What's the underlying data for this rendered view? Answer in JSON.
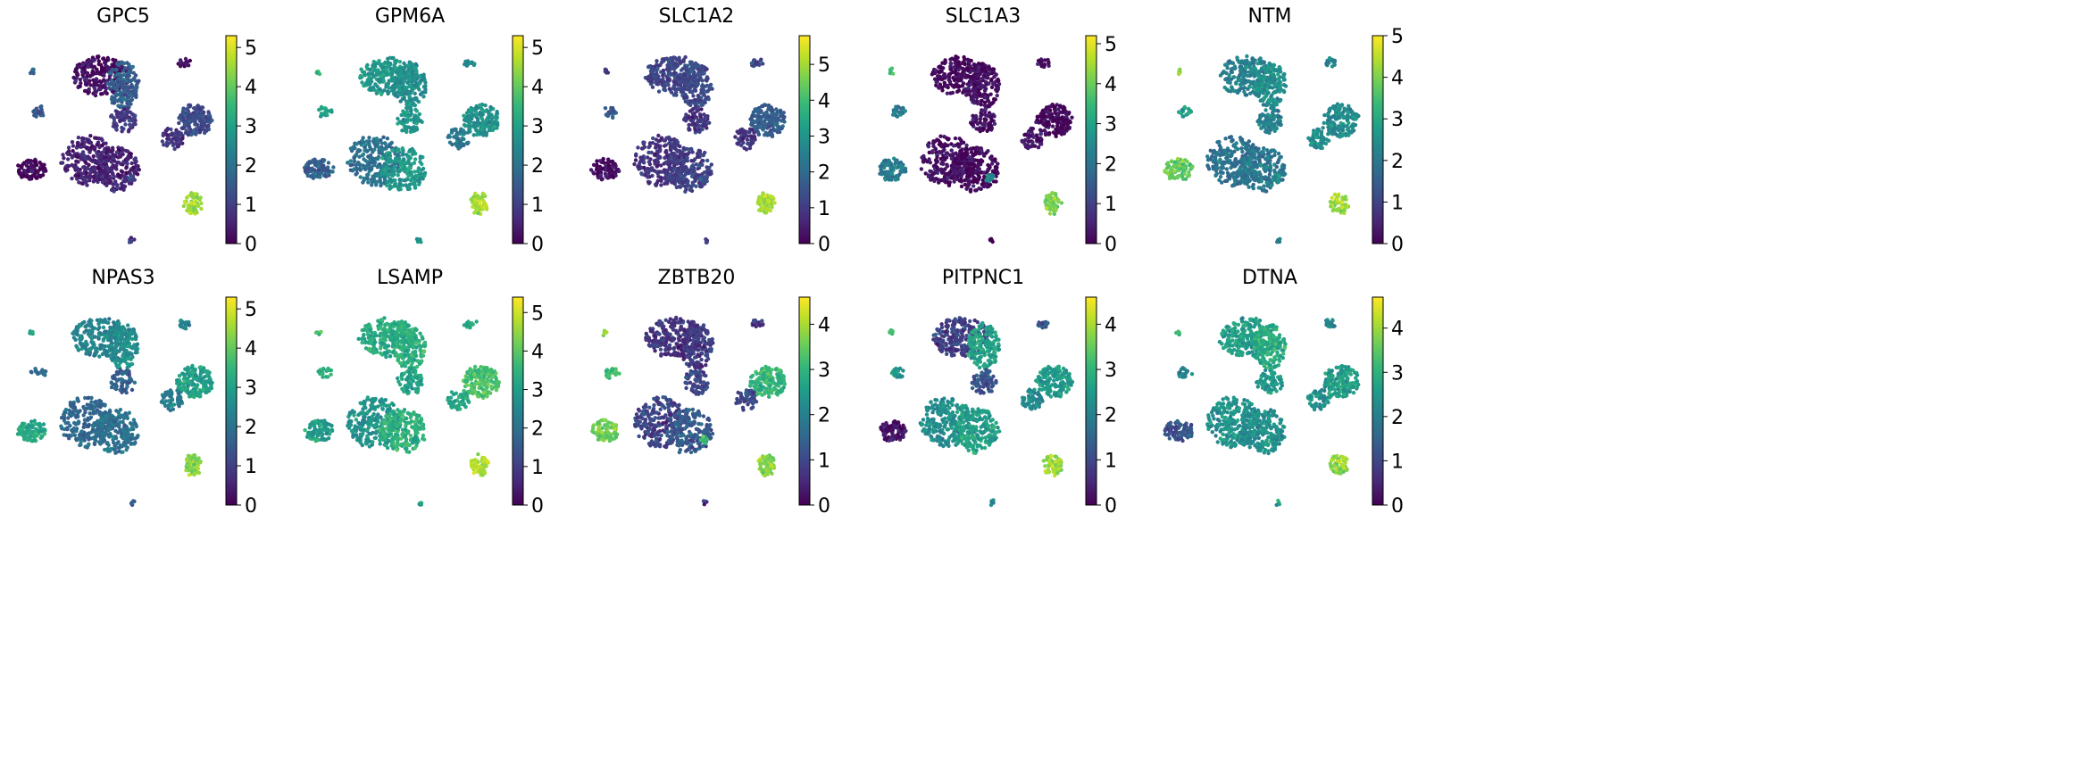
{
  "colormap": "viridis",
  "colormap_stops": [
    "#440154",
    "#482878",
    "#3e4a89",
    "#31688e",
    "#26828e",
    "#1f9e89",
    "#35b779",
    "#6ece58",
    "#b5de2b",
    "#fde725"
  ],
  "chart_data": [
    {
      "type": "scatter",
      "title": "GPC5",
      "colorbar_ticks": [
        "0",
        "1",
        "2",
        "3",
        "4",
        "5"
      ],
      "vmin": 0,
      "vmax": 5.3,
      "levels": {
        "c1": 0.2,
        "c2": 1.6,
        "c3": 0.9,
        "c4": 0.5,
        "c5": 0.5,
        "c6": 1.2,
        "c7": 0.1,
        "c8": 0.8,
        "c9": 1.4,
        "c10": 0.2,
        "c11": 4.5,
        "c12": 1.8,
        "c13": 1.0,
        "c14": 1.0
      }
    },
    {
      "type": "scatter",
      "title": "GPM6A",
      "colorbar_ticks": [
        "0",
        "1",
        "2",
        "3",
        "4",
        "5"
      ],
      "vmin": 0,
      "vmax": 5.3,
      "levels": {
        "c1": 2.8,
        "c2": 2.6,
        "c3": 2.8,
        "c4": 2.0,
        "c5": 2.8,
        "c6": 2.7,
        "c7": 1.6,
        "c8": 2.2,
        "c9": 3.0,
        "c10": 2.4,
        "c11": 4.6,
        "c12": 3.5,
        "c13": 2.6,
        "c14": 2.8
      }
    },
    {
      "type": "scatter",
      "title": "SLC1A2",
      "colorbar_ticks": [
        "0",
        "1",
        "2",
        "3",
        "4",
        "5"
      ],
      "vmin": 0,
      "vmax": 5.8,
      "levels": {
        "c1": 1.2,
        "c2": 1.3,
        "c3": 0.9,
        "c4": 0.9,
        "c5": 1.1,
        "c6": 1.7,
        "c7": 0.2,
        "c8": 0.9,
        "c9": 1.6,
        "c10": 1.3,
        "c11": 5.0,
        "c12": 1.0,
        "c13": 1.5,
        "c14": 1.0
      }
    },
    {
      "type": "scatter",
      "title": "SLC1A3",
      "colorbar_ticks": [
        "0",
        "1",
        "2",
        "3",
        "4",
        "5"
      ],
      "vmin": 0,
      "vmax": 5.2,
      "levels": {
        "c1": 0.1,
        "c2": 0.2,
        "c3": 0.3,
        "c4": 0.2,
        "c5": 0.1,
        "c6": 0.1,
        "c7": 2.2,
        "c8": 0.3,
        "c9": 2.2,
        "c10": 0.2,
        "c11": 4.2,
        "c12": 3.6,
        "c13": 2.4,
        "c14": 0.2
      }
    },
    {
      "type": "scatter",
      "title": "NTM",
      "colorbar_ticks": [
        "0",
        "1",
        "2",
        "3",
        "4",
        "5"
      ],
      "vmin": 0,
      "vmax": 5.0,
      "levels": {
        "c1": 2.2,
        "c2": 2.5,
        "c3": 2.2,
        "c4": 1.9,
        "c5": 2.0,
        "c6": 2.4,
        "c7": 3.8,
        "c8": 2.5,
        "c9": 2.8,
        "c10": 2.2,
        "c11": 4.3,
        "c12": 4.2,
        "c13": 2.4,
        "c14": 2.0
      }
    },
    {
      "type": "scatter",
      "title": "NPAS3",
      "colorbar_ticks": [
        "0",
        "1",
        "2",
        "3",
        "4",
        "5"
      ],
      "vmin": 0,
      "vmax": 5.3,
      "levels": {
        "c1": 2.4,
        "c2": 2.6,
        "c3": 1.6,
        "c4": 1.8,
        "c5": 2.0,
        "c6": 3.0,
        "c7": 3.2,
        "c8": 2.2,
        "c9": 1.8,
        "c10": 2.4,
        "c11": 4.4,
        "c12": 3.3,
        "c13": 2.0,
        "c14": 1.9
      }
    },
    {
      "type": "scatter",
      "title": "LSAMP",
      "colorbar_ticks": [
        "0",
        "1",
        "2",
        "3",
        "4",
        "5"
      ],
      "vmin": 0,
      "vmax": 5.4,
      "levels": {
        "c1": 3.3,
        "c2": 3.4,
        "c3": 3.2,
        "c4": 2.8,
        "c5": 3.5,
        "c6": 3.8,
        "c7": 3.0,
        "c8": 3.2,
        "c9": 3.4,
        "c10": 3.3,
        "c11": 4.8,
        "c12": 3.9,
        "c13": 3.1,
        "c14": 3.0
      }
    },
    {
      "type": "scatter",
      "title": "ZBTB20",
      "colorbar_ticks": [
        "0",
        "1",
        "2",
        "3",
        "4"
      ],
      "vmin": 0,
      "vmax": 4.6,
      "levels": {
        "c1": 0.7,
        "c2": 0.8,
        "c3": 1.0,
        "c4": 0.9,
        "c5": 1.3,
        "c6": 3.0,
        "c7": 3.6,
        "c8": 1.1,
        "c9": 3.2,
        "c10": 0.8,
        "c11": 3.8,
        "c12": 3.7,
        "c13": 3.3,
        "c14": 0.8
      }
    },
    {
      "type": "scatter",
      "title": "PITPNC1",
      "colorbar_ticks": [
        "0",
        "1",
        "2",
        "3",
        "4"
      ],
      "vmin": 0,
      "vmax": 4.6,
      "levels": {
        "c1": 0.9,
        "c2": 2.6,
        "c3": 1.2,
        "c4": 2.3,
        "c5": 2.6,
        "c6": 2.5,
        "c7": 0.2,
        "c8": 2.2,
        "c9": 2.4,
        "c10": 1.2,
        "c11": 3.9,
        "c12": 3.2,
        "c13": 2.4,
        "c14": 2.3
      }
    },
    {
      "type": "scatter",
      "title": "DTNA",
      "colorbar_ticks": [
        "0",
        "1",
        "2",
        "3",
        "4"
      ],
      "vmin": 0,
      "vmax": 4.7,
      "levels": {
        "c1": 2.6,
        "c2": 2.9,
        "c3": 2.5,
        "c4": 2.4,
        "c5": 2.3,
        "c6": 2.6,
        "c7": 1.2,
        "c8": 2.4,
        "c9": 2.1,
        "c10": 2.2,
        "c11": 4.0,
        "c12": 3.2,
        "c13": 2.4,
        "c14": 2.6
      }
    }
  ]
}
